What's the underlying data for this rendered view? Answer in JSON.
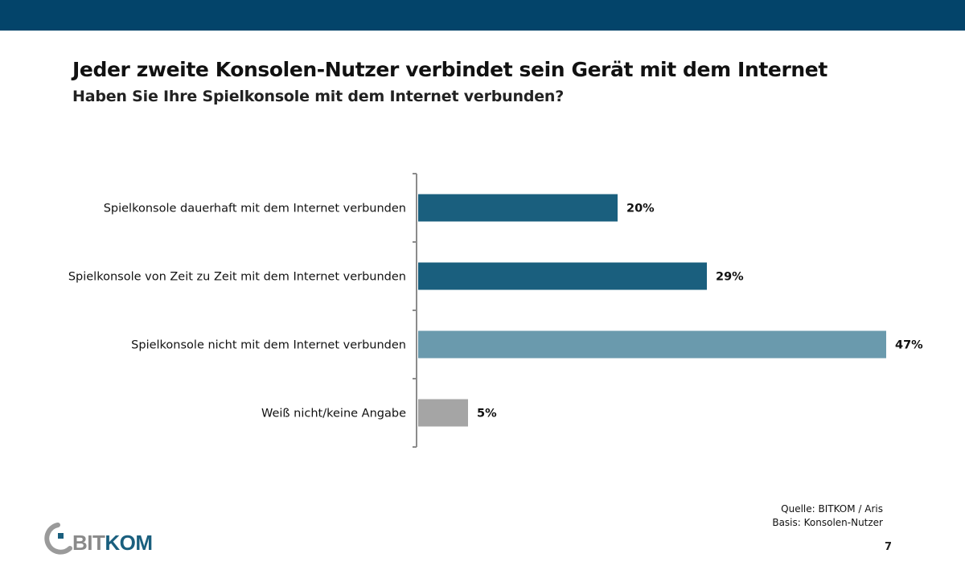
{
  "header": {
    "title": "Jeder zweite Konsolen-Nutzer verbindet sein Gerät mit dem Internet",
    "subtitle": "Haben Sie Ihre Spielkonsole mit dem Internet verbunden?"
  },
  "chart_data": {
    "type": "bar",
    "orientation": "horizontal",
    "categories": [
      "Spielkonsole dauerhaft mit dem Internet verbunden",
      "Spielkonsole von Zeit zu Zeit mit dem Internet verbunden",
      "Spielkonsole nicht mit dem Internet verbunden",
      "Weiß nicht/keine Angabe"
    ],
    "values": [
      20,
      29,
      47,
      5
    ],
    "value_labels": [
      "20%",
      "29%",
      "47%",
      "5%"
    ],
    "colors": [
      "#1a5f7e",
      "#1a5f7e",
      "#6a9aad",
      "#a5a5a5"
    ],
    "xlim": [
      0,
      47
    ],
    "unit": "%",
    "grid": false,
    "legend": "none"
  },
  "footer": {
    "source": "Quelle: BITKOM / Aris",
    "basis": "Basis: Konsolen-Nutzer",
    "page": "7",
    "logo_text": "BITKOM"
  },
  "colors": {
    "top_bar": "#03446a",
    "logo_blue": "#1a5f7e",
    "logo_gray": "#8a8a8a"
  }
}
